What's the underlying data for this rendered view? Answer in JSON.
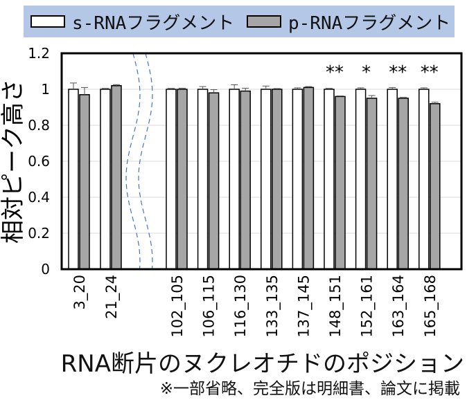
{
  "chart_data": {
    "type": "bar",
    "xlabel": "RNA断片のヌクレオチドのポジション",
    "ylabel": "相対ピーク高さ",
    "ylim": [
      0,
      1.2
    ],
    "yticks": [
      "0",
      "0.2",
      "0.4",
      "0.6",
      "0.8",
      "1",
      "1.2"
    ],
    "categories": [
      "3_20",
      "21_24",
      "102_105",
      "106_115",
      "116_130",
      "133_135",
      "137_145",
      "148_151",
      "152_161",
      "163_164",
      "165_168"
    ],
    "series": [
      {
        "name": "s-RNAフラグメント",
        "color": "#ffffff",
        "values": [
          1.0,
          1.0,
          1.0,
          1.0,
          1.0,
          1.0,
          1.0,
          1.0,
          1.0,
          1.0,
          1.0
        ],
        "errors": [
          0.035,
          0.005,
          0.005,
          0.015,
          0.025,
          0.018,
          0.008,
          0.005,
          0.008,
          0.01,
          0.008
        ]
      },
      {
        "name": "p-RNAフラグメント",
        "color": "#a6a6a6",
        "values": [
          0.97,
          1.02,
          1.0,
          0.98,
          0.99,
          1.0,
          1.01,
          0.96,
          0.95,
          0.95,
          0.92
        ],
        "errors": [
          0.04,
          0.006,
          0.006,
          0.018,
          0.016,
          0.004,
          0.005,
          0.003,
          0.015,
          0.005,
          0.008
        ]
      }
    ],
    "significance": [
      "",
      "",
      "",
      "",
      "",
      "",
      "",
      "**",
      "*",
      "**",
      "**"
    ],
    "axis_break_after": "21_24",
    "grid": true,
    "legend_position": "top"
  },
  "legend": {
    "s_label": "s-RNAフラグメント",
    "p_label": "p-RNAフラグメント",
    "s_color": "#ffffff",
    "p_color": "#a6a6a6",
    "background": "#b4c7e7"
  },
  "footnote": "※一部省略、完全版は明細書、論文に掲載"
}
